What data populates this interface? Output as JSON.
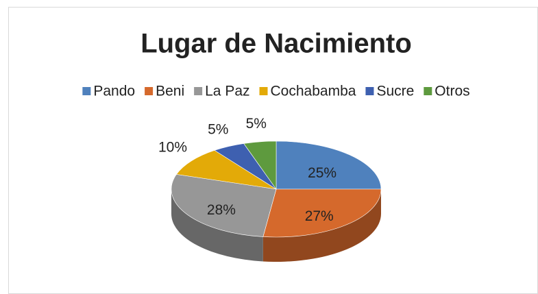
{
  "chart_data": {
    "type": "pie",
    "title": "Lugar de Nacimiento",
    "categories": [
      "Pando",
      "Beni",
      "La Paz",
      "Cochabamba",
      "Sucre",
      "Otros"
    ],
    "values": [
      25,
      27,
      28,
      10,
      5,
      5
    ],
    "value_labels": [
      "25%",
      "27%",
      "28%",
      "10%",
      "5%",
      "5%"
    ],
    "colors": [
      "#4f81bd",
      "#d5692c",
      "#979797",
      "#e3aa08",
      "#3e60b0",
      "#5e9a3e"
    ],
    "legend": "top"
  }
}
